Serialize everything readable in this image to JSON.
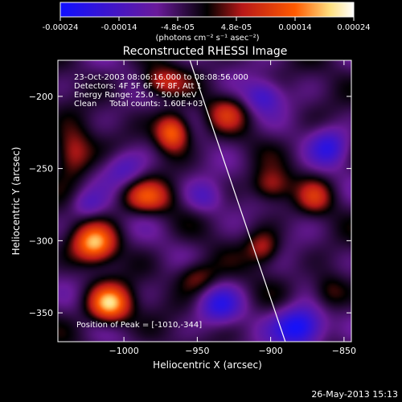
{
  "colorbar": {
    "ticks": [
      "-0.00024",
      "-0.00014",
      "-4.8e-05",
      "4.8e-05",
      "0.00014",
      "0.00024"
    ],
    "units": "(photons cm⁻² s⁻¹ asec⁻²)"
  },
  "chart_data": {
    "type": "heatmap",
    "title": "Reconstructed RHESSI Image",
    "xlabel": "Heliocentric X (arcsec)",
    "ylabel": "Heliocentric Y (arcsec)",
    "xlim": [
      -1045,
      -845
    ],
    "ylim": [
      -370,
      -175
    ],
    "x_ticks": [
      -1000,
      -950,
      -900,
      -850
    ],
    "y_ticks": [
      -200,
      -250,
      -300,
      -350
    ],
    "color_scale": [
      -0.00024,
      0.00024
    ],
    "colormap": [
      "#1010ff",
      "#6a1a9a",
      "#000000",
      "#b81818",
      "#ff5a00",
      "#ffe080",
      "#ffffff"
    ],
    "annotations": [
      "23-Oct-2003 08:06:16.000 to 08:08:56.000",
      "Detectors: 4F 5F 6F 7F 8F, Att 1",
      "Energy Range: 25.0 - 50.0 keV",
      "Clean     Total counts: 1.60E+03"
    ],
    "peak_label": "Position of Peak = [-1010,-344]",
    "peak": [
      -1010,
      -344
    ],
    "limb_line": [
      [
        -955,
        -175
      ],
      [
        -890,
        -370
      ]
    ],
    "sources": [
      {
        "x": -1010,
        "y": -344,
        "amp": 1.0,
        "sx": 10,
        "sy": 9
      },
      {
        "x": -1020,
        "y": -302,
        "amp": 0.9,
        "sx": 10,
        "sy": 9
      },
      {
        "x": -967,
        "y": -225,
        "amp": 0.85,
        "sx": 8,
        "sy": 9
      },
      {
        "x": -985,
        "y": -270,
        "amp": 0.6,
        "sx": 12,
        "sy": 8
      },
      {
        "x": -930,
        "y": -212,
        "amp": 0.4,
        "sx": 9,
        "sy": 8
      },
      {
        "x": -900,
        "y": -262,
        "amp": 0.45,
        "sx": 9,
        "sy": 8
      },
      {
        "x": -905,
        "y": -305,
        "amp": 0.45,
        "sx": 8,
        "sy": 8
      },
      {
        "x": -870,
        "y": -270,
        "amp": 0.4,
        "sx": 8,
        "sy": 8
      },
      {
        "x": -1035,
        "y": -240,
        "amp": 0.55,
        "sx": 9,
        "sy": 12
      },
      {
        "x": -950,
        "y": -325,
        "amp": 0.4,
        "sx": 10,
        "sy": 8
      },
      {
        "x": -860,
        "y": -335,
        "amp": 0.35,
        "sx": 9,
        "sy": 9
      },
      {
        "x": -975,
        "y": -190,
        "amp": 0.5,
        "sx": 10,
        "sy": 7
      },
      {
        "x": -935,
        "y": -345,
        "amp": -0.5,
        "sx": 10,
        "sy": 9
      },
      {
        "x": -880,
        "y": -360,
        "amp": -0.9,
        "sx": 12,
        "sy": 10
      },
      {
        "x": -860,
        "y": -235,
        "amp": -0.5,
        "sx": 9,
        "sy": 9
      },
      {
        "x": -1000,
        "y": -250,
        "amp": -0.4,
        "sx": 10,
        "sy": 9
      },
      {
        "x": -905,
        "y": -200,
        "amp": -0.45,
        "sx": 9,
        "sy": 8
      },
      {
        "x": -945,
        "y": -270,
        "amp": -0.35,
        "sx": 9,
        "sy": 8
      },
      {
        "x": -1025,
        "y": -275,
        "amp": -0.3,
        "sx": 8,
        "sy": 7
      }
    ]
  },
  "footer": {
    "timestamp": "26-May-2013 15:13"
  }
}
